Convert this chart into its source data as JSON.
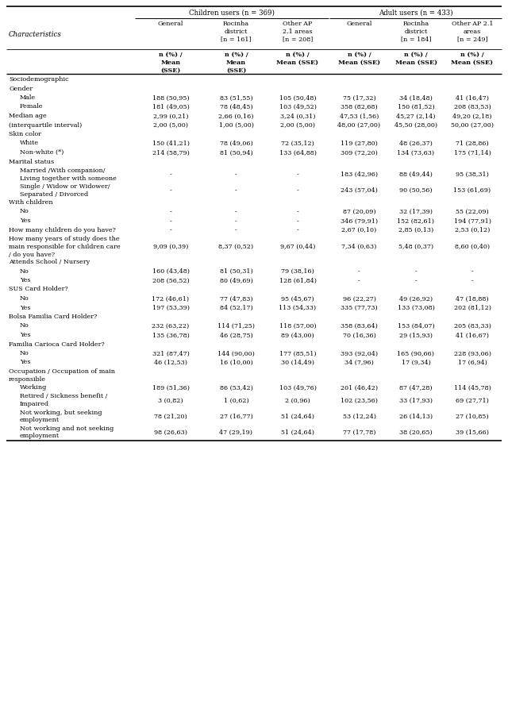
{
  "col_headers": {
    "children_group": "Children users (n = 369)",
    "adult_group": "Adult users (n = 433)",
    "col1": "General",
    "col2": "Rocinha\ndistrict\n[n = 161]",
    "col3": "Other AP\n2.1 areas\n[n = 208]",
    "col4": "General",
    "col5": "Rocinha\ndistrict\n[n = 184]",
    "col6": "Other AP 2.1\nareas\n[n = 249]",
    "subheader1": "n (%) /\nMean\n(SSE)",
    "subheader2": "n (%) /\nMean\n(SSE)",
    "subheader3": "n (%) /\nMean (SSE)",
    "subheader4": "n (%) /\nMean (SSE)",
    "subheader5": "n (%) /\nMean (SSE)",
    "subheader6": "n (%) /\nMean (SSE)"
  },
  "rows": [
    {
      "label": "Sociodemographic",
      "indent": 0,
      "section": true,
      "multiline": false,
      "values": [
        "",
        "",
        "",
        "",
        "",
        ""
      ]
    },
    {
      "label": "Gender",
      "indent": 0,
      "section": true,
      "multiline": false,
      "values": [
        "",
        "",
        "",
        "",
        "",
        ""
      ]
    },
    {
      "label": "Male",
      "indent": 1,
      "section": false,
      "multiline": false,
      "values": [
        "188 (50,95)",
        "83 (51,55)",
        "105 (50,48)",
        "75 (17,32)",
        "34 (18,48)",
        "41 (16,47)"
      ]
    },
    {
      "label": "Female",
      "indent": 1,
      "section": false,
      "multiline": false,
      "values": [
        "181 (49,05)",
        "78 (48,45)",
        "103 (49,52)",
        "358 (82,68)",
        "150 (81,52)",
        "208 (83,53)"
      ]
    },
    {
      "label": "Median age",
      "indent": 0,
      "section": false,
      "multiline": false,
      "values": [
        "2,99 (0,21)",
        "2,66 (0,16)",
        "3,24 (0,31)",
        "47,53 (1,56)",
        "45,27 (2,14)",
        "49,20 (2,18)"
      ]
    },
    {
      "label": "(interquartile interval)",
      "indent": 0,
      "section": false,
      "multiline": false,
      "values": [
        "2,00 (5,00)",
        "1,00 (5,00)",
        "2,00 (5,00)",
        "48,00 (27,00)",
        "45,50 (28,00)",
        "50,00 (27,00)"
      ]
    },
    {
      "label": "Skin color",
      "indent": 0,
      "section": true,
      "multiline": false,
      "values": [
        "",
        "",
        "",
        "",
        "",
        ""
      ]
    },
    {
      "label": "White",
      "indent": 1,
      "section": false,
      "multiline": false,
      "values": [
        "150 (41,21)",
        "78 (49,06)",
        "72 (35,12)",
        "119 (27,80)",
        "48 (26,37)",
        "71 (28,86)"
      ]
    },
    {
      "label": "Non-white (*)",
      "indent": 1,
      "section": false,
      "multiline": false,
      "values": [
        "214 (58,79)",
        "81 (50,94)",
        "133 (64,88)",
        "309 (72,20)",
        "134 (73,63)",
        "175 (71,14)"
      ]
    },
    {
      "label": "Marital status",
      "indent": 0,
      "section": true,
      "multiline": false,
      "values": [
        "",
        "",
        "",
        "",
        "",
        ""
      ]
    },
    {
      "label": "Married /With companion/\nLiving together with someone",
      "indent": 1,
      "section": false,
      "multiline": true,
      "values": [
        "-",
        "-",
        "-",
        "183 (42,96)",
        "88 (49,44)",
        "95 (38,31)"
      ]
    },
    {
      "label": "Single / Widow or Widower/\nSeparated / Divorced",
      "indent": 1,
      "section": false,
      "multiline": true,
      "values": [
        "-",
        "-",
        "-",
        "243 (57,04)",
        "90 (50,56)",
        "153 (61,69)"
      ]
    },
    {
      "label": "With children",
      "indent": 0,
      "section": true,
      "multiline": false,
      "values": [
        "",
        "",
        "",
        "",
        "",
        ""
      ]
    },
    {
      "label": "No",
      "indent": 1,
      "section": false,
      "multiline": false,
      "values": [
        "-",
        "-",
        "-",
        "87 (20,09)",
        "32 (17,39)",
        "55 (22,09)"
      ]
    },
    {
      "label": "Yes",
      "indent": 1,
      "section": false,
      "multiline": false,
      "values": [
        "-",
        "-",
        "-",
        "346 (79,91)",
        "152 (82,61)",
        "194 (77,91)"
      ]
    },
    {
      "label": "How many children do you have?",
      "indent": 0,
      "section": false,
      "multiline": false,
      "values": [
        "-",
        "-",
        "-",
        "2,67 (0,10)",
        "2,85 (0,13)",
        "2,53 (0,12)"
      ]
    },
    {
      "label": "How many years of study does the\nmain responsible for children care\n/ do you have?",
      "indent": 0,
      "section": false,
      "multiline": true,
      "nlines": 3,
      "values": [
        "9,09 (0,39)",
        "8,37 (0,52)",
        "9,67 (0,44)",
        "7,34 (0,63)",
        "5,48 (0,37)",
        "8,60 (0,40)"
      ]
    },
    {
      "label": "Attends School / Nursery",
      "indent": 0,
      "section": true,
      "multiline": false,
      "values": [
        "",
        "",
        "",
        "",
        "",
        ""
      ]
    },
    {
      "label": "No",
      "indent": 1,
      "section": false,
      "multiline": false,
      "values": [
        "160 (43,48)",
        "81 (50,31)",
        "79 (38,16)",
        "-",
        "-",
        "-"
      ]
    },
    {
      "label": "Yes",
      "indent": 1,
      "section": false,
      "multiline": false,
      "values": [
        "208 (56,52)",
        "80 (49,69)",
        "128 (61,84)",
        "-",
        "-",
        "-"
      ]
    },
    {
      "label": "SUS Card Holder?",
      "indent": 0,
      "section": true,
      "multiline": false,
      "values": [
        "",
        "",
        "",
        "",
        "",
        ""
      ]
    },
    {
      "label": "No",
      "indent": 1,
      "section": false,
      "multiline": false,
      "values": [
        "172 (46,61)",
        "77 (47,83)",
        "95 (45,67)",
        "96 (22,27)",
        "49 (26,92)",
        "47 (18,88)"
      ]
    },
    {
      "label": "Yes",
      "indent": 1,
      "section": false,
      "multiline": false,
      "values": [
        "197 (53,39)",
        "84 (52,17)",
        "113 (54,33)",
        "335 (77,73)",
        "133 (73,08)",
        "202 (81,12)"
      ]
    },
    {
      "label": "Bolsa Familia Card Holder?",
      "indent": 0,
      "section": true,
      "multiline": false,
      "values": [
        "",
        "",
        "",
        "",
        "",
        ""
      ]
    },
    {
      "label": "No",
      "indent": 1,
      "section": false,
      "multiline": false,
      "values": [
        "232 (63,22)",
        "114 (71,25)",
        "118 (57,00)",
        "358 (83,64)",
        "153 (84,07)",
        "205 (83,33)"
      ]
    },
    {
      "label": "Yes",
      "indent": 1,
      "section": false,
      "multiline": false,
      "values": [
        "135 (36,78)",
        "46 (28,75)",
        "89 (43,00)",
        "70 (16,36)",
        "29 (15,93)",
        "41 (16,67)"
      ]
    },
    {
      "label": "Familia Carioca Card Holder?",
      "indent": 0,
      "section": true,
      "multiline": false,
      "values": [
        "",
        "",
        "",
        "",
        "",
        ""
      ]
    },
    {
      "label": "No",
      "indent": 1,
      "section": false,
      "multiline": false,
      "values": [
        "321 (87,47)",
        "144 (90,00)",
        "177 (85,51)",
        "393 (92,04)",
        "165 (90,66)",
        "228 (93,06)"
      ]
    },
    {
      "label": "Yes",
      "indent": 1,
      "section": false,
      "multiline": false,
      "values": [
        "46 (12,53)",
        "16 (10,00)",
        "30 (14,49)",
        "34 (7,96)",
        "17 (9,34)",
        "17 (6,94)"
      ]
    },
    {
      "label": "Occupation / Occupation of main\nresponsible",
      "indent": 0,
      "section": true,
      "multiline": true,
      "values": [
        "",
        "",
        "",
        "",
        "",
        ""
      ]
    },
    {
      "label": "Working",
      "indent": 1,
      "section": false,
      "multiline": false,
      "values": [
        "189 (51,36)",
        "86 (53,42)",
        "103 (49,76)",
        "201 (46,42)",
        "87 (47,28)",
        "114 (45,78)"
      ]
    },
    {
      "label": "Retired / Sickness benefit /\nImpaired",
      "indent": 1,
      "section": false,
      "multiline": true,
      "values": [
        "3 (0,82)",
        "1 (0,62)",
        "2 (0,96)",
        "102 (23,56)",
        "33 (17,93)",
        "69 (27,71)"
      ]
    },
    {
      "label": "Not working, but seeking\nemployment",
      "indent": 1,
      "section": false,
      "multiline": true,
      "values": [
        "78 (21,20)",
        "27 (16,77)",
        "51 (24,64)",
        "53 (12,24)",
        "26 (14,13)",
        "27 (10,85)"
      ]
    },
    {
      "label": "Not working and not seeking\nemployment",
      "indent": 1,
      "section": false,
      "multiline": true,
      "values": [
        "98 (26,63)",
        "47 (29,19)",
        "51 (24,64)",
        "77 (17,78)",
        "38 (20,65)",
        "39 (15,66)"
      ]
    }
  ],
  "bg_color": "#ffffff",
  "text_color": "#000000",
  "line_color": "#000000",
  "font_size": 5.8,
  "header_font_size": 6.2
}
